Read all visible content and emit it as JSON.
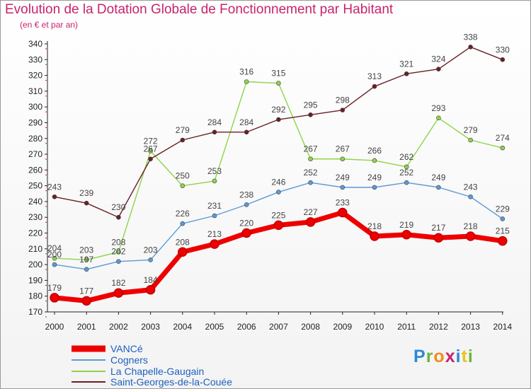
{
  "header": {
    "title": "Evolution de la Dotation Globale de Fonctionnement par Habitant",
    "subtitle": "(en € et par an)"
  },
  "logo": {
    "text": "Proxiti"
  },
  "colors": {
    "title": "#c8236a",
    "axis": "#222222",
    "grid_dash": "#e01b1b"
  },
  "chart_data": {
    "type": "line",
    "title": "Evolution de la Dotation Globale de Fonctionnement par Habitant",
    "subtitle": "(en € et par an)",
    "xlabel": "",
    "ylabel": "",
    "ylim": [
      170,
      340
    ],
    "y_ticks": [
      170,
      180,
      190,
      200,
      210,
      220,
      230,
      240,
      250,
      260,
      270,
      280,
      290,
      300,
      310,
      320,
      330,
      340
    ],
    "x": [
      "2000",
      "2001",
      "2002",
      "2003",
      "2004",
      "2005",
      "2006",
      "2007",
      "2008",
      "2009",
      "2010",
      "2011",
      "2012",
      "2013",
      "2014"
    ],
    "legend_position": "bottom-left",
    "series": [
      {
        "name": "VANCé",
        "color": "#ee0000",
        "values": [
          179,
          177,
          182,
          184,
          208,
          213,
          220,
          225,
          227,
          233,
          218,
          219,
          217,
          218,
          215
        ]
      },
      {
        "name": "Cogners",
        "color": "#5b9bd5",
        "values": [
          200,
          197,
          202,
          203,
          226,
          231,
          238,
          246,
          252,
          249,
          249,
          252,
          249,
          243,
          229
        ]
      },
      {
        "name": "La Chapelle-Gaugain",
        "color": "#8fd34a",
        "values": [
          204,
          203,
          208,
          272,
          250,
          253,
          316,
          315,
          267,
          267,
          266,
          262,
          293,
          279,
          274
        ]
      },
      {
        "name": "Saint-Georges-de-la-Couée",
        "color": "#6b1f24",
        "values": [
          243,
          239,
          230,
          267,
          279,
          284,
          284,
          292,
          295,
          298,
          313,
          321,
          324,
          338,
          330
        ]
      }
    ]
  }
}
